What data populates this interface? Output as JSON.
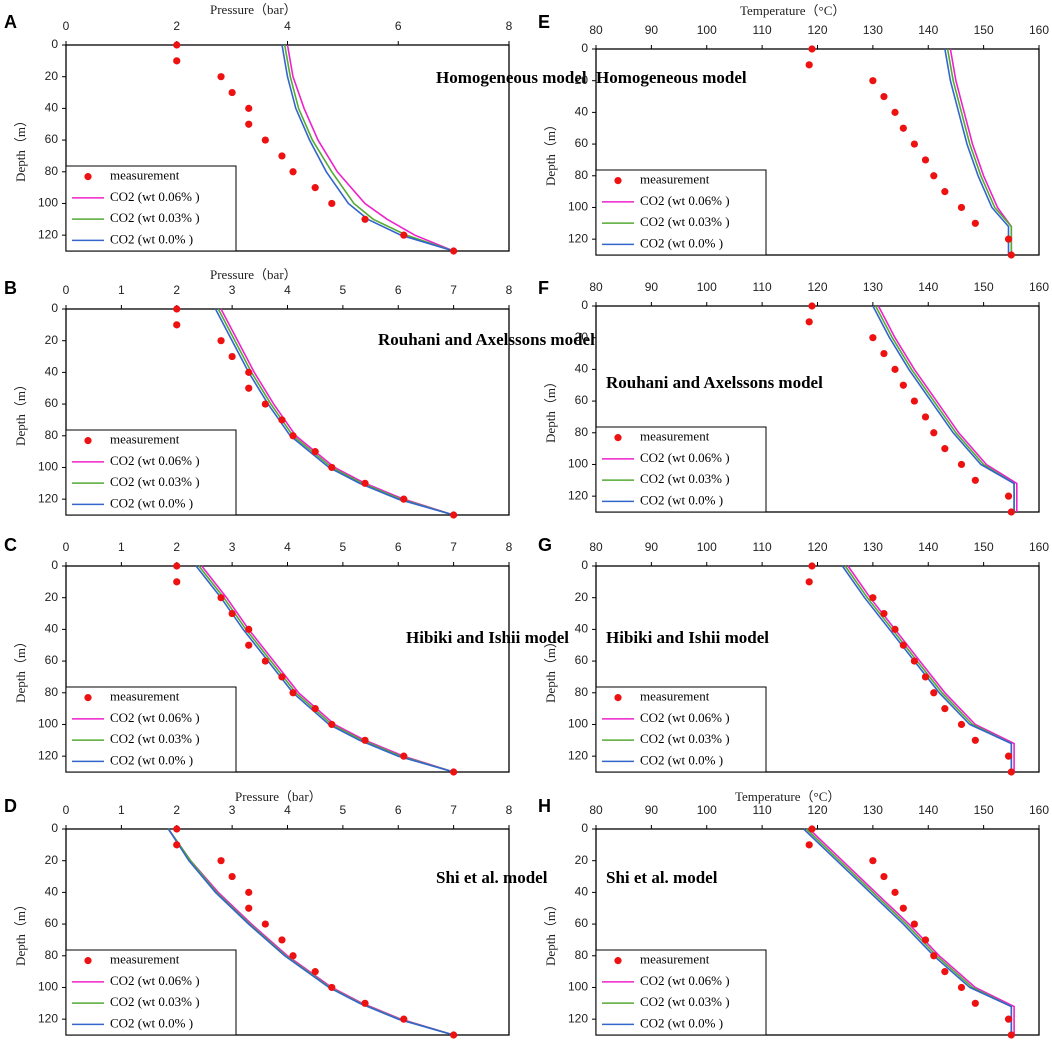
{
  "chart_data": [
    {
      "type": "scatter",
      "panel": "A",
      "title": "Homogeneous model",
      "xlabel": "Pressure（bar）",
      "ylabel": "Depth（m）",
      "xlim": [
        0,
        8
      ],
      "ylim": [
        130,
        0
      ],
      "x_ticks": [
        "0",
        "2",
        "4",
        "6",
        "8"
      ],
      "y_ticks": [
        "0",
        "20",
        "40",
        "60",
        "80",
        "100",
        "120"
      ],
      "legend": [
        "measurement",
        "CO2 (wt 0.06% )",
        "CO2 (wt 0.03% )",
        "CO2 (wt 0.0% )"
      ],
      "measurement": {
        "depth": [
          0,
          10,
          20,
          30,
          40,
          50,
          60,
          70,
          80,
          90,
          100,
          110,
          120,
          130
        ],
        "x": [
          2.0,
          2.0,
          2.8,
          3.0,
          3.3,
          3.3,
          3.6,
          3.9,
          4.1,
          4.5,
          4.8,
          5.4,
          6.1,
          7.0
        ]
      },
      "series": [
        {
          "name": "CO2 (wt 0.06% )",
          "color": "#ee22cc",
          "depth": [
            0,
            20,
            40,
            60,
            80,
            100,
            110,
            120,
            130
          ],
          "x": [
            4.0,
            4.1,
            4.3,
            4.55,
            4.9,
            5.4,
            5.8,
            6.3,
            7.0
          ]
        },
        {
          "name": "CO2 (wt 0.03% )",
          "color": "#55aa33",
          "depth": [
            0,
            20,
            40,
            60,
            80,
            100,
            110,
            120,
            130
          ],
          "x": [
            3.95,
            4.05,
            4.2,
            4.45,
            4.8,
            5.2,
            5.55,
            6.15,
            7.0
          ]
        },
        {
          "name": "CO2 (wt 0.0% )",
          "color": "#3366cc",
          "depth": [
            0,
            20,
            40,
            60,
            80,
            100,
            110,
            120,
            130
          ],
          "x": [
            3.9,
            4.0,
            4.15,
            4.4,
            4.7,
            5.1,
            5.45,
            6.05,
            7.0
          ]
        }
      ]
    },
    {
      "type": "scatter",
      "panel": "B",
      "title": "Rouhani and Axelssons model",
      "xlabel": "Pressure（bar）",
      "ylabel": "Depth（m）",
      "xlim": [
        0,
        8
      ],
      "ylim": [
        130,
        0
      ],
      "x_ticks": [
        "0",
        "1",
        "2",
        "3",
        "4",
        "5",
        "6",
        "7",
        "8"
      ],
      "y_ticks": [
        "0",
        "20",
        "40",
        "60",
        "80",
        "100",
        "120"
      ],
      "legend": [
        "measurement",
        "CO2 (wt 0.06% )",
        "CO2 (wt 0.03% )",
        "CO2 (wt 0.0% )"
      ],
      "measurement": {
        "depth": [
          0,
          10,
          20,
          30,
          40,
          50,
          60,
          70,
          80,
          90,
          100,
          110,
          120,
          130
        ],
        "x": [
          2.0,
          2.0,
          2.8,
          3.0,
          3.3,
          3.3,
          3.6,
          3.9,
          4.1,
          4.5,
          4.8,
          5.4,
          6.1,
          7.0
        ]
      },
      "series": [
        {
          "name": "CO2 (wt 0.06% )",
          "color": "#ee22cc",
          "depth": [
            0,
            20,
            40,
            60,
            80,
            100,
            110,
            120,
            130
          ],
          "x": [
            2.8,
            3.1,
            3.4,
            3.75,
            4.15,
            4.85,
            5.4,
            6.1,
            7.0
          ]
        },
        {
          "name": "CO2 (wt 0.03% )",
          "color": "#55aa33",
          "depth": [
            0,
            20,
            40,
            60,
            80,
            100,
            110,
            120,
            130
          ],
          "x": [
            2.75,
            3.05,
            3.35,
            3.7,
            4.1,
            4.8,
            5.35,
            6.05,
            7.0
          ]
        },
        {
          "name": "CO2 (wt 0.0% )",
          "color": "#3366cc",
          "depth": [
            0,
            20,
            40,
            60,
            80,
            100,
            110,
            120,
            130
          ],
          "x": [
            2.7,
            3.0,
            3.3,
            3.65,
            4.05,
            4.75,
            5.3,
            6.0,
            7.0
          ]
        }
      ]
    },
    {
      "type": "scatter",
      "panel": "C",
      "title": "Hibiki and Ishii model",
      "xlabel": "",
      "ylabel": "Depth（m）",
      "xlim": [
        0,
        8
      ],
      "ylim": [
        130,
        0
      ],
      "x_ticks": [
        "0",
        "1",
        "2",
        "3",
        "4",
        "5",
        "6",
        "7",
        "8"
      ],
      "y_ticks": [
        "0",
        "20",
        "40",
        "60",
        "80",
        "100",
        "120"
      ],
      "legend": [
        "measurement",
        "CO2 (wt 0.06% )",
        "CO2 (wt 0.03% )",
        "CO2 (wt 0.0% )"
      ],
      "measurement": {
        "depth": [
          0,
          10,
          20,
          30,
          40,
          50,
          60,
          70,
          80,
          90,
          100,
          110,
          120,
          130
        ],
        "x": [
          2.0,
          2.0,
          2.8,
          3.0,
          3.3,
          3.3,
          3.6,
          3.9,
          4.1,
          4.5,
          4.8,
          5.4,
          6.1,
          7.0
        ]
      },
      "series": [
        {
          "name": "CO2 (wt 0.06% )",
          "color": "#ee22cc",
          "depth": [
            0,
            20,
            40,
            60,
            80,
            100,
            110,
            120,
            130
          ],
          "x": [
            2.45,
            2.9,
            3.3,
            3.75,
            4.2,
            4.85,
            5.4,
            6.1,
            7.0
          ]
        },
        {
          "name": "CO2 (wt 0.03% )",
          "color": "#55aa33",
          "depth": [
            0,
            20,
            40,
            60,
            80,
            100,
            110,
            120,
            130
          ],
          "x": [
            2.4,
            2.85,
            3.25,
            3.7,
            4.15,
            4.8,
            5.35,
            6.05,
            7.0
          ]
        },
        {
          "name": "CO2 (wt 0.0% )",
          "color": "#3366cc",
          "depth": [
            0,
            20,
            40,
            60,
            80,
            100,
            110,
            120,
            130
          ],
          "x": [
            2.35,
            2.8,
            3.2,
            3.65,
            4.1,
            4.75,
            5.3,
            6.0,
            7.0
          ]
        }
      ]
    },
    {
      "type": "scatter",
      "panel": "D",
      "title": "Shi et al. model",
      "xlabel": "Pressure（bar）",
      "ylabel": "Depth（m）",
      "xlim": [
        0,
        8
      ],
      "ylim": [
        130,
        0
      ],
      "x_ticks": [
        "0",
        "1",
        "2",
        "3",
        "4",
        "5",
        "6",
        "7",
        "8"
      ],
      "y_ticks": [
        "0",
        "20",
        "40",
        "60",
        "80",
        "100",
        "120"
      ],
      "legend": [
        "measurement",
        "CO2 (wt 0.06% )",
        "CO2 (wt 0.03% )",
        "CO2 (wt 0.0% )"
      ],
      "measurement": {
        "depth": [
          0,
          10,
          20,
          30,
          40,
          50,
          60,
          70,
          80,
          90,
          100,
          110,
          120,
          130
        ],
        "x": [
          2.0,
          2.0,
          2.8,
          3.0,
          3.3,
          3.3,
          3.6,
          3.9,
          4.1,
          4.5,
          4.8,
          5.4,
          6.1,
          7.0
        ]
      },
      "series": [
        {
          "name": "CO2 (wt 0.06% )",
          "color": "#ee22cc",
          "depth": [
            0,
            20,
            40,
            60,
            80,
            100,
            110,
            120,
            130
          ],
          "x": [
            1.85,
            2.25,
            2.75,
            3.35,
            4.0,
            4.8,
            5.35,
            6.05,
            7.0
          ]
        },
        {
          "name": "CO2 (wt 0.03% )",
          "color": "#55aa33",
          "depth": [
            0,
            20,
            40,
            60,
            80,
            100,
            110,
            120,
            130
          ],
          "x": [
            1.85,
            2.25,
            2.72,
            3.32,
            3.97,
            4.77,
            5.32,
            6.02,
            7.0
          ]
        },
        {
          "name": "CO2 (wt 0.0% )",
          "color": "#3366cc",
          "depth": [
            0,
            20,
            40,
            60,
            80,
            100,
            110,
            120,
            130
          ],
          "x": [
            1.85,
            2.22,
            2.7,
            3.3,
            3.95,
            4.75,
            5.3,
            6.0,
            7.0
          ]
        }
      ]
    },
    {
      "type": "scatter",
      "panel": "E",
      "title": "Homogeneous model",
      "xlabel": "Temperature（°C）",
      "ylabel": "Depth（m）",
      "xlim": [
        80,
        160
      ],
      "ylim": [
        130,
        0
      ],
      "x_ticks": [
        "80",
        "90",
        "100",
        "110",
        "120",
        "130",
        "140",
        "150",
        "160"
      ],
      "y_ticks": [
        "0",
        "20",
        "40",
        "60",
        "80",
        "100",
        "120"
      ],
      "legend": [
        "measurement",
        "CO2 (wt 0.06% )",
        "CO2 (wt 0.03% )",
        "CO2 (wt 0.0% )"
      ],
      "measurement": {
        "depth": [
          0,
          10,
          20,
          30,
          40,
          50,
          60,
          70,
          80,
          90,
          100,
          110,
          120,
          130
        ],
        "x": [
          119,
          118.5,
          130,
          132,
          134,
          135.5,
          137.5,
          139.5,
          141,
          143,
          146,
          148.5,
          154.5,
          155
        ]
      },
      "series": [
        {
          "name": "CO2 (wt 0.06% )",
          "color": "#ee22cc",
          "depth": [
            0,
            20,
            40,
            60,
            80,
            100,
            112,
            130
          ],
          "x": [
            144,
            145,
            146.5,
            148,
            150,
            152.5,
            155,
            155
          ]
        },
        {
          "name": "CO2 (wt 0.03% )",
          "color": "#55aa33",
          "depth": [
            0,
            20,
            40,
            60,
            80,
            100,
            112,
            130
          ],
          "x": [
            143.5,
            144.5,
            146,
            147.5,
            149.5,
            152,
            155,
            155
          ]
        },
        {
          "name": "CO2 (wt 0.0% )",
          "color": "#3366cc",
          "depth": [
            0,
            20,
            40,
            60,
            80,
            100,
            112,
            130
          ],
          "x": [
            143,
            144,
            145.5,
            147,
            149,
            151.5,
            154.5,
            154.5
          ]
        }
      ]
    },
    {
      "type": "scatter",
      "panel": "F",
      "title": "Rouhani and Axelssons model",
      "xlabel": "",
      "ylabel": "Depth（m）",
      "xlim": [
        80,
        160
      ],
      "ylim": [
        130,
        0
      ],
      "x_ticks": [
        "80",
        "90",
        "100",
        "110",
        "120",
        "130",
        "140",
        "150",
        "160"
      ],
      "y_ticks": [
        "0",
        "20",
        "40",
        "60",
        "80",
        "100",
        "120"
      ],
      "legend": [
        "measurement",
        "CO2 (wt 0.06% )",
        "CO2 (wt 0.03% )",
        "CO2 (wt 0.0% )"
      ],
      "measurement": {
        "depth": [
          0,
          10,
          20,
          30,
          40,
          50,
          60,
          70,
          80,
          90,
          100,
          110,
          120,
          130
        ],
        "x": [
          119,
          118.5,
          130,
          132,
          134,
          135.5,
          137.5,
          139.5,
          141,
          143,
          146,
          148.5,
          154.5,
          155
        ]
      },
      "series": [
        {
          "name": "CO2 (wt 0.06% )",
          "color": "#ee22cc",
          "depth": [
            0,
            20,
            40,
            60,
            80,
            100,
            112,
            130
          ],
          "x": [
            131,
            134,
            137.5,
            141.5,
            145.5,
            150.5,
            156,
            156
          ]
        },
        {
          "name": "CO2 (wt 0.03% )",
          "color": "#55aa33",
          "depth": [
            0,
            20,
            40,
            60,
            80,
            100,
            112,
            130
          ],
          "x": [
            130.5,
            133.5,
            137,
            141,
            145,
            150,
            155.5,
            155.5
          ]
        },
        {
          "name": "CO2 (wt 0.0% )",
          "color": "#3366cc",
          "depth": [
            0,
            20,
            40,
            60,
            80,
            100,
            112,
            130
          ],
          "x": [
            130,
            133,
            136.5,
            140.5,
            144.5,
            149.5,
            155.5,
            155.5
          ]
        }
      ]
    },
    {
      "type": "scatter",
      "panel": "G",
      "title": "Hibiki and Ishii model",
      "xlabel": "",
      "ylabel": "Depth（m）",
      "xlim": [
        80,
        160
      ],
      "ylim": [
        130,
        0
      ],
      "x_ticks": [
        "80",
        "90",
        "100",
        "110",
        "120",
        "130",
        "140",
        "150",
        "160"
      ],
      "y_ticks": [
        "0",
        "20",
        "40",
        "60",
        "80",
        "100",
        "120"
      ],
      "legend": [
        "measurement",
        "CO2 (wt 0.06% )",
        "CO2 (wt 0.03% )",
        "CO2 (wt 0.0% )"
      ],
      "measurement": {
        "depth": [
          0,
          10,
          20,
          30,
          40,
          50,
          60,
          70,
          80,
          90,
          100,
          110,
          120,
          130
        ],
        "x": [
          119,
          118.5,
          130,
          132,
          134,
          135.5,
          137.5,
          139.5,
          141,
          143,
          146,
          148.5,
          154.5,
          155
        ]
      },
      "series": [
        {
          "name": "CO2 (wt 0.06% )",
          "color": "#ee22cc",
          "depth": [
            0,
            20,
            40,
            60,
            80,
            100,
            112,
            130
          ],
          "x": [
            125.5,
            129.5,
            134,
            138.5,
            143,
            148.5,
            155.5,
            155.5
          ]
        },
        {
          "name": "CO2 (wt 0.03% )",
          "color": "#55aa33",
          "depth": [
            0,
            20,
            40,
            60,
            80,
            100,
            112,
            130
          ],
          "x": [
            125,
            129,
            133.5,
            138,
            142.5,
            148,
            155,
            155
          ]
        },
        {
          "name": "CO2 (wt 0.0% )",
          "color": "#3366cc",
          "depth": [
            0,
            20,
            40,
            60,
            80,
            100,
            112,
            130
          ],
          "x": [
            124.5,
            128.5,
            133,
            137.5,
            142,
            147.5,
            155,
            155
          ]
        }
      ]
    },
    {
      "type": "scatter",
      "panel": "H",
      "title": "Shi et al. model",
      "xlabel": "Temperature（°C）",
      "ylabel": "Depth（m）",
      "xlim": [
        80,
        160
      ],
      "ylim": [
        130,
        0
      ],
      "x_ticks": [
        "80",
        "90",
        "100",
        "110",
        "120",
        "130",
        "140",
        "150",
        "160"
      ],
      "y_ticks": [
        "0",
        "20",
        "40",
        "60",
        "80",
        "100",
        "120"
      ],
      "legend": [
        "measurement",
        "CO2 (wt 0.06% )",
        "CO2 (wt 0.03% )",
        "CO2 (wt 0.0% )"
      ],
      "measurement": {
        "depth": [
          0,
          10,
          20,
          30,
          40,
          50,
          60,
          70,
          80,
          90,
          100,
          110,
          120,
          130
        ],
        "x": [
          119,
          118.5,
          130,
          132,
          134,
          135.5,
          137.5,
          139.5,
          141,
          143,
          146,
          148.5,
          154.5,
          155
        ]
      },
      "series": [
        {
          "name": "CO2 (wt 0.06% )",
          "color": "#ee22cc",
          "depth": [
            0,
            20,
            40,
            60,
            80,
            100,
            112,
            130
          ],
          "x": [
            118.5,
            124.5,
            130.5,
            136.5,
            142,
            148.5,
            155.5,
            155.5
          ]
        },
        {
          "name": "CO2 (wt 0.03% )",
          "color": "#55aa33",
          "depth": [
            0,
            20,
            40,
            60,
            80,
            100,
            112,
            130
          ],
          "x": [
            118,
            124,
            130,
            136,
            141.5,
            148,
            155,
            155
          ]
        },
        {
          "name": "CO2 (wt 0.0% )",
          "color": "#3366cc",
          "depth": [
            0,
            20,
            40,
            60,
            80,
            100,
            112,
            130
          ],
          "x": [
            117.5,
            123.5,
            129.5,
            135.5,
            141,
            147.5,
            155,
            155
          ]
        }
      ]
    }
  ],
  "marker_color": "#ee1111"
}
